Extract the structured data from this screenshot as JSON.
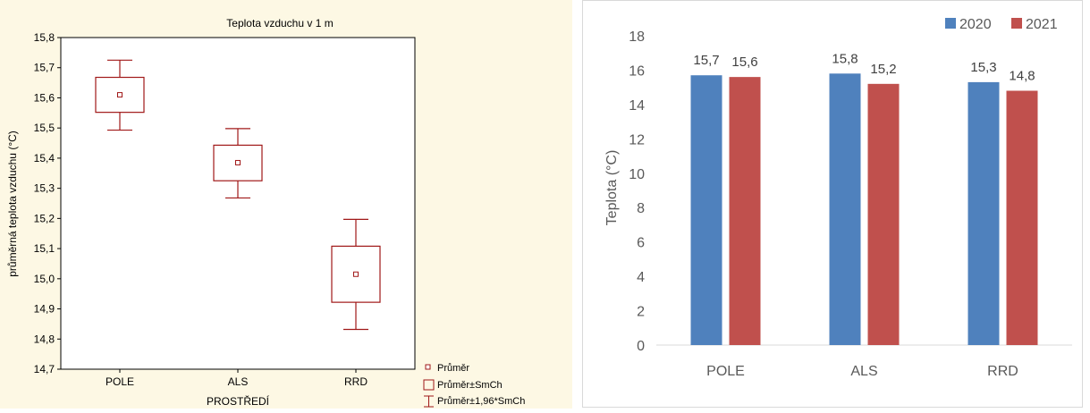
{
  "chart_data": [
    {
      "type": "box",
      "title": "Teplota vzduchu v 1 m",
      "xlabel": "PROSTŘEDÍ",
      "ylabel": "průměrná teplota vzduchu (°C)",
      "ylim": [
        14.7,
        15.8
      ],
      "yticks": [
        "14,7",
        "14,8",
        "14,9",
        "15,0",
        "15,1",
        "15,2",
        "15,3",
        "15,4",
        "15,5",
        "15,6",
        "15,7",
        "15,8"
      ],
      "categories": [
        "POLE",
        "ALS",
        "RRD"
      ],
      "mean": [
        15.61,
        15.385,
        15.015
      ],
      "se_low": [
        15.552,
        15.325,
        14.922
      ],
      "se_high": [
        15.668,
        15.443,
        15.108
      ],
      "ci_low": [
        15.493,
        15.268,
        14.832
      ],
      "ci_high": [
        15.725,
        15.498,
        15.197
      ],
      "legend": [
        "Průměr",
        "Průměr±SmCh",
        "Průměr±1,96*SmCh"
      ],
      "legend_position": "bottom-right",
      "background": "#fdf8e4",
      "color": "#a01818",
      "grid": false
    },
    {
      "type": "bar",
      "categories": [
        "POLE",
        "ALS",
        "RRD"
      ],
      "series": [
        {
          "name": "2020",
          "values": [
            15.7,
            15.8,
            15.3
          ],
          "labels": [
            "15,7",
            "15,8",
            "15,3"
          ],
          "color": "#4f81bd"
        },
        {
          "name": "2021",
          "values": [
            15.6,
            15.2,
            14.8
          ],
          "labels": [
            "15,6",
            "15,2",
            "14,8"
          ],
          "color": "#c0504d"
        }
      ],
      "ylabel": "Teplota (°C)",
      "ylim": [
        0,
        18
      ],
      "yticks": [
        "0",
        "2",
        "4",
        "6",
        "8",
        "10",
        "12",
        "14",
        "16",
        "18"
      ],
      "legend_position": "top-right",
      "grid": false
    }
  ]
}
